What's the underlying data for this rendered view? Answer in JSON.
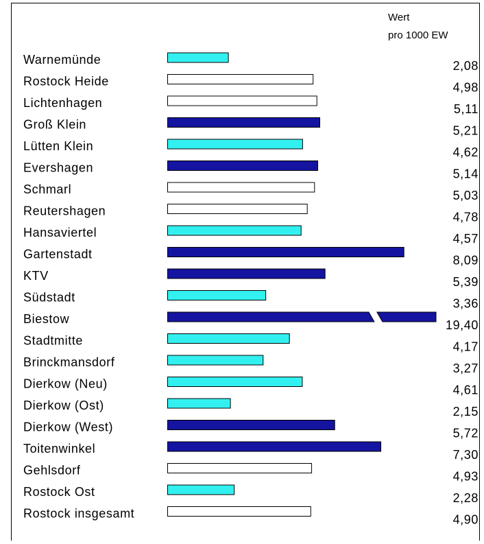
{
  "chart_data": {
    "type": "hbar",
    "value_header": [
      "Wert",
      "pro 1000 EW"
    ],
    "categories": [
      "Warnemünde",
      "Rostock Heide",
      "Lichtenhagen",
      "Groß Klein",
      "Lütten Klein",
      "Evershagen",
      "Schmarl",
      "Reutershagen",
      "Hansaviertel",
      "Gartenstadt",
      "KTV",
      "Südstadt",
      "Biestow",
      "Stadtmitte",
      "Brinckmansdorf",
      "Dierkow (Neu)",
      "Dierkow (Ost)",
      "Dierkow (West)",
      "Toitenwinkel",
      "Gehlsdorf",
      "Rostock Ost",
      "Rostock insgesamt"
    ],
    "values": [
      2.08,
      4.98,
      5.11,
      5.21,
      4.62,
      5.14,
      5.03,
      4.78,
      4.57,
      8.09,
      5.39,
      3.36,
      19.4,
      4.17,
      3.27,
      4.61,
      2.15,
      5.72,
      7.3,
      4.93,
      2.28,
      4.9
    ],
    "value_labels": [
      "2,08",
      "4,98",
      "5,11",
      "5,21",
      "4,62",
      "5,14",
      "5,03",
      "4,78",
      "4,57",
      "8,09",
      "5,39",
      "3,36",
      "19,40",
      "4,17",
      "3,27",
      "4,61",
      "2,15",
      "5,72",
      "7,30",
      "4,93",
      "2,28",
      "4,90"
    ],
    "colors": [
      "#33f0f0",
      "#ffffff",
      "#ffffff",
      "#1414a0",
      "#33f0f0",
      "#1414a0",
      "#ffffff",
      "#ffffff",
      "#33f0f0",
      "#1414a0",
      "#1414a0",
      "#33f0f0",
      "#1414a0",
      "#33f0f0",
      "#33f0f0",
      "#33f0f0",
      "#33f0f0",
      "#1414a0",
      "#1414a0",
      "#ffffff",
      "#33f0f0",
      "#ffffff"
    ],
    "xlim": [
      0,
      9.2
    ]
  }
}
